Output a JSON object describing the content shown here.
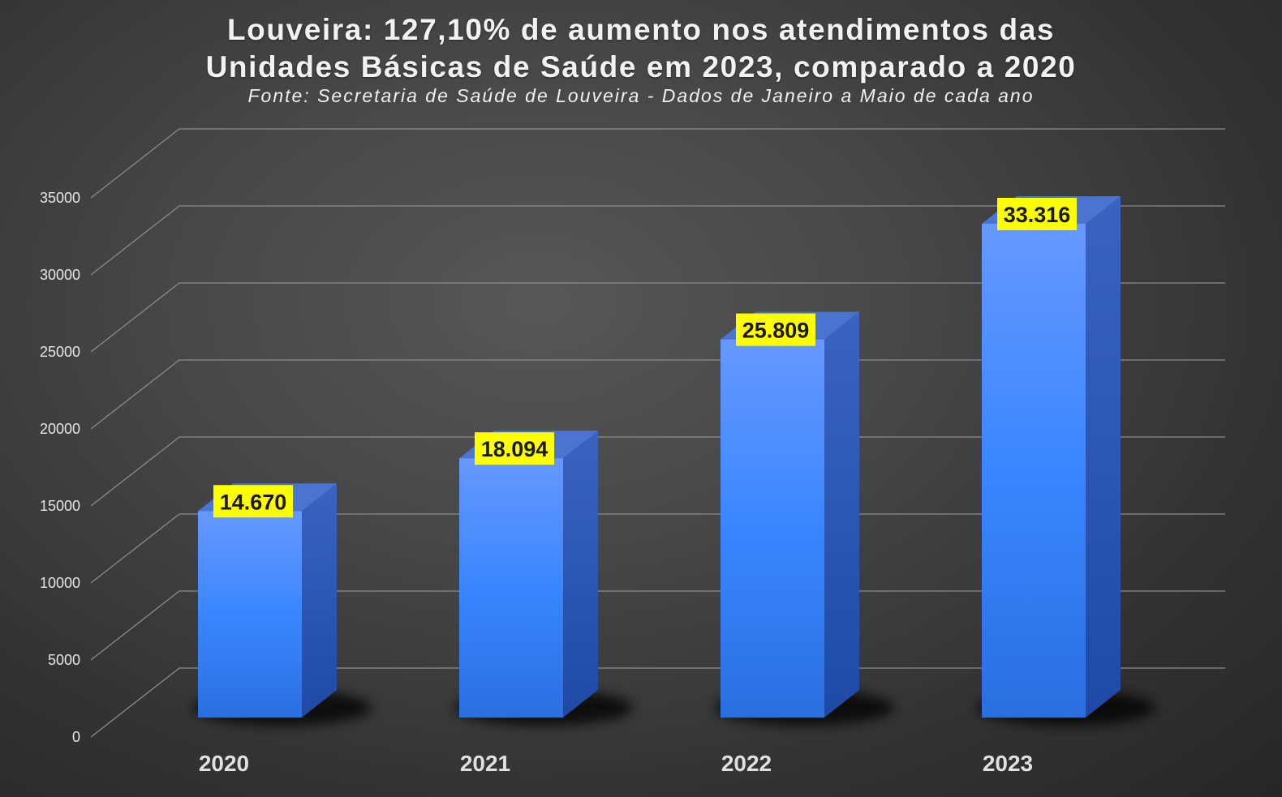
{
  "chart_data": {
    "type": "bar",
    "title_lines": [
      "Louveira: 127,10% de aumento nos atendimentos das",
      "Unidades Básicas de Saúde em 2023, comparado a 2020"
    ],
    "subtitle": "Fonte: Secretaria de Saúde de Louveira - Dados de Janeiro a Maio de cada ano",
    "categories": [
      "2020",
      "2021",
      "2022",
      "2023"
    ],
    "values": [
      14670,
      18094,
      25809,
      33316
    ],
    "data_labels": [
      "14.670",
      "18.094",
      "25.809",
      "33.316"
    ],
    "ylim": [
      0,
      35000
    ],
    "yticks": [
      0,
      5000,
      10000,
      15000,
      20000,
      25000,
      30000,
      35000
    ],
    "ytick_labels": [
      "0",
      "5000",
      "10000",
      "15000",
      "20000",
      "25000",
      "30000",
      "35000"
    ],
    "grid": true,
    "style": "3d-column",
    "colors": {
      "bar_front_top": "#6698ff",
      "bar_front_mid": "#3a86ff",
      "bar_front_bottom": "#2a6fe0",
      "bar_side": "#2553b0",
      "bar_top": "#4a74cf",
      "label_bg": "#ffff00",
      "gridline": "#8c8c8c"
    }
  }
}
